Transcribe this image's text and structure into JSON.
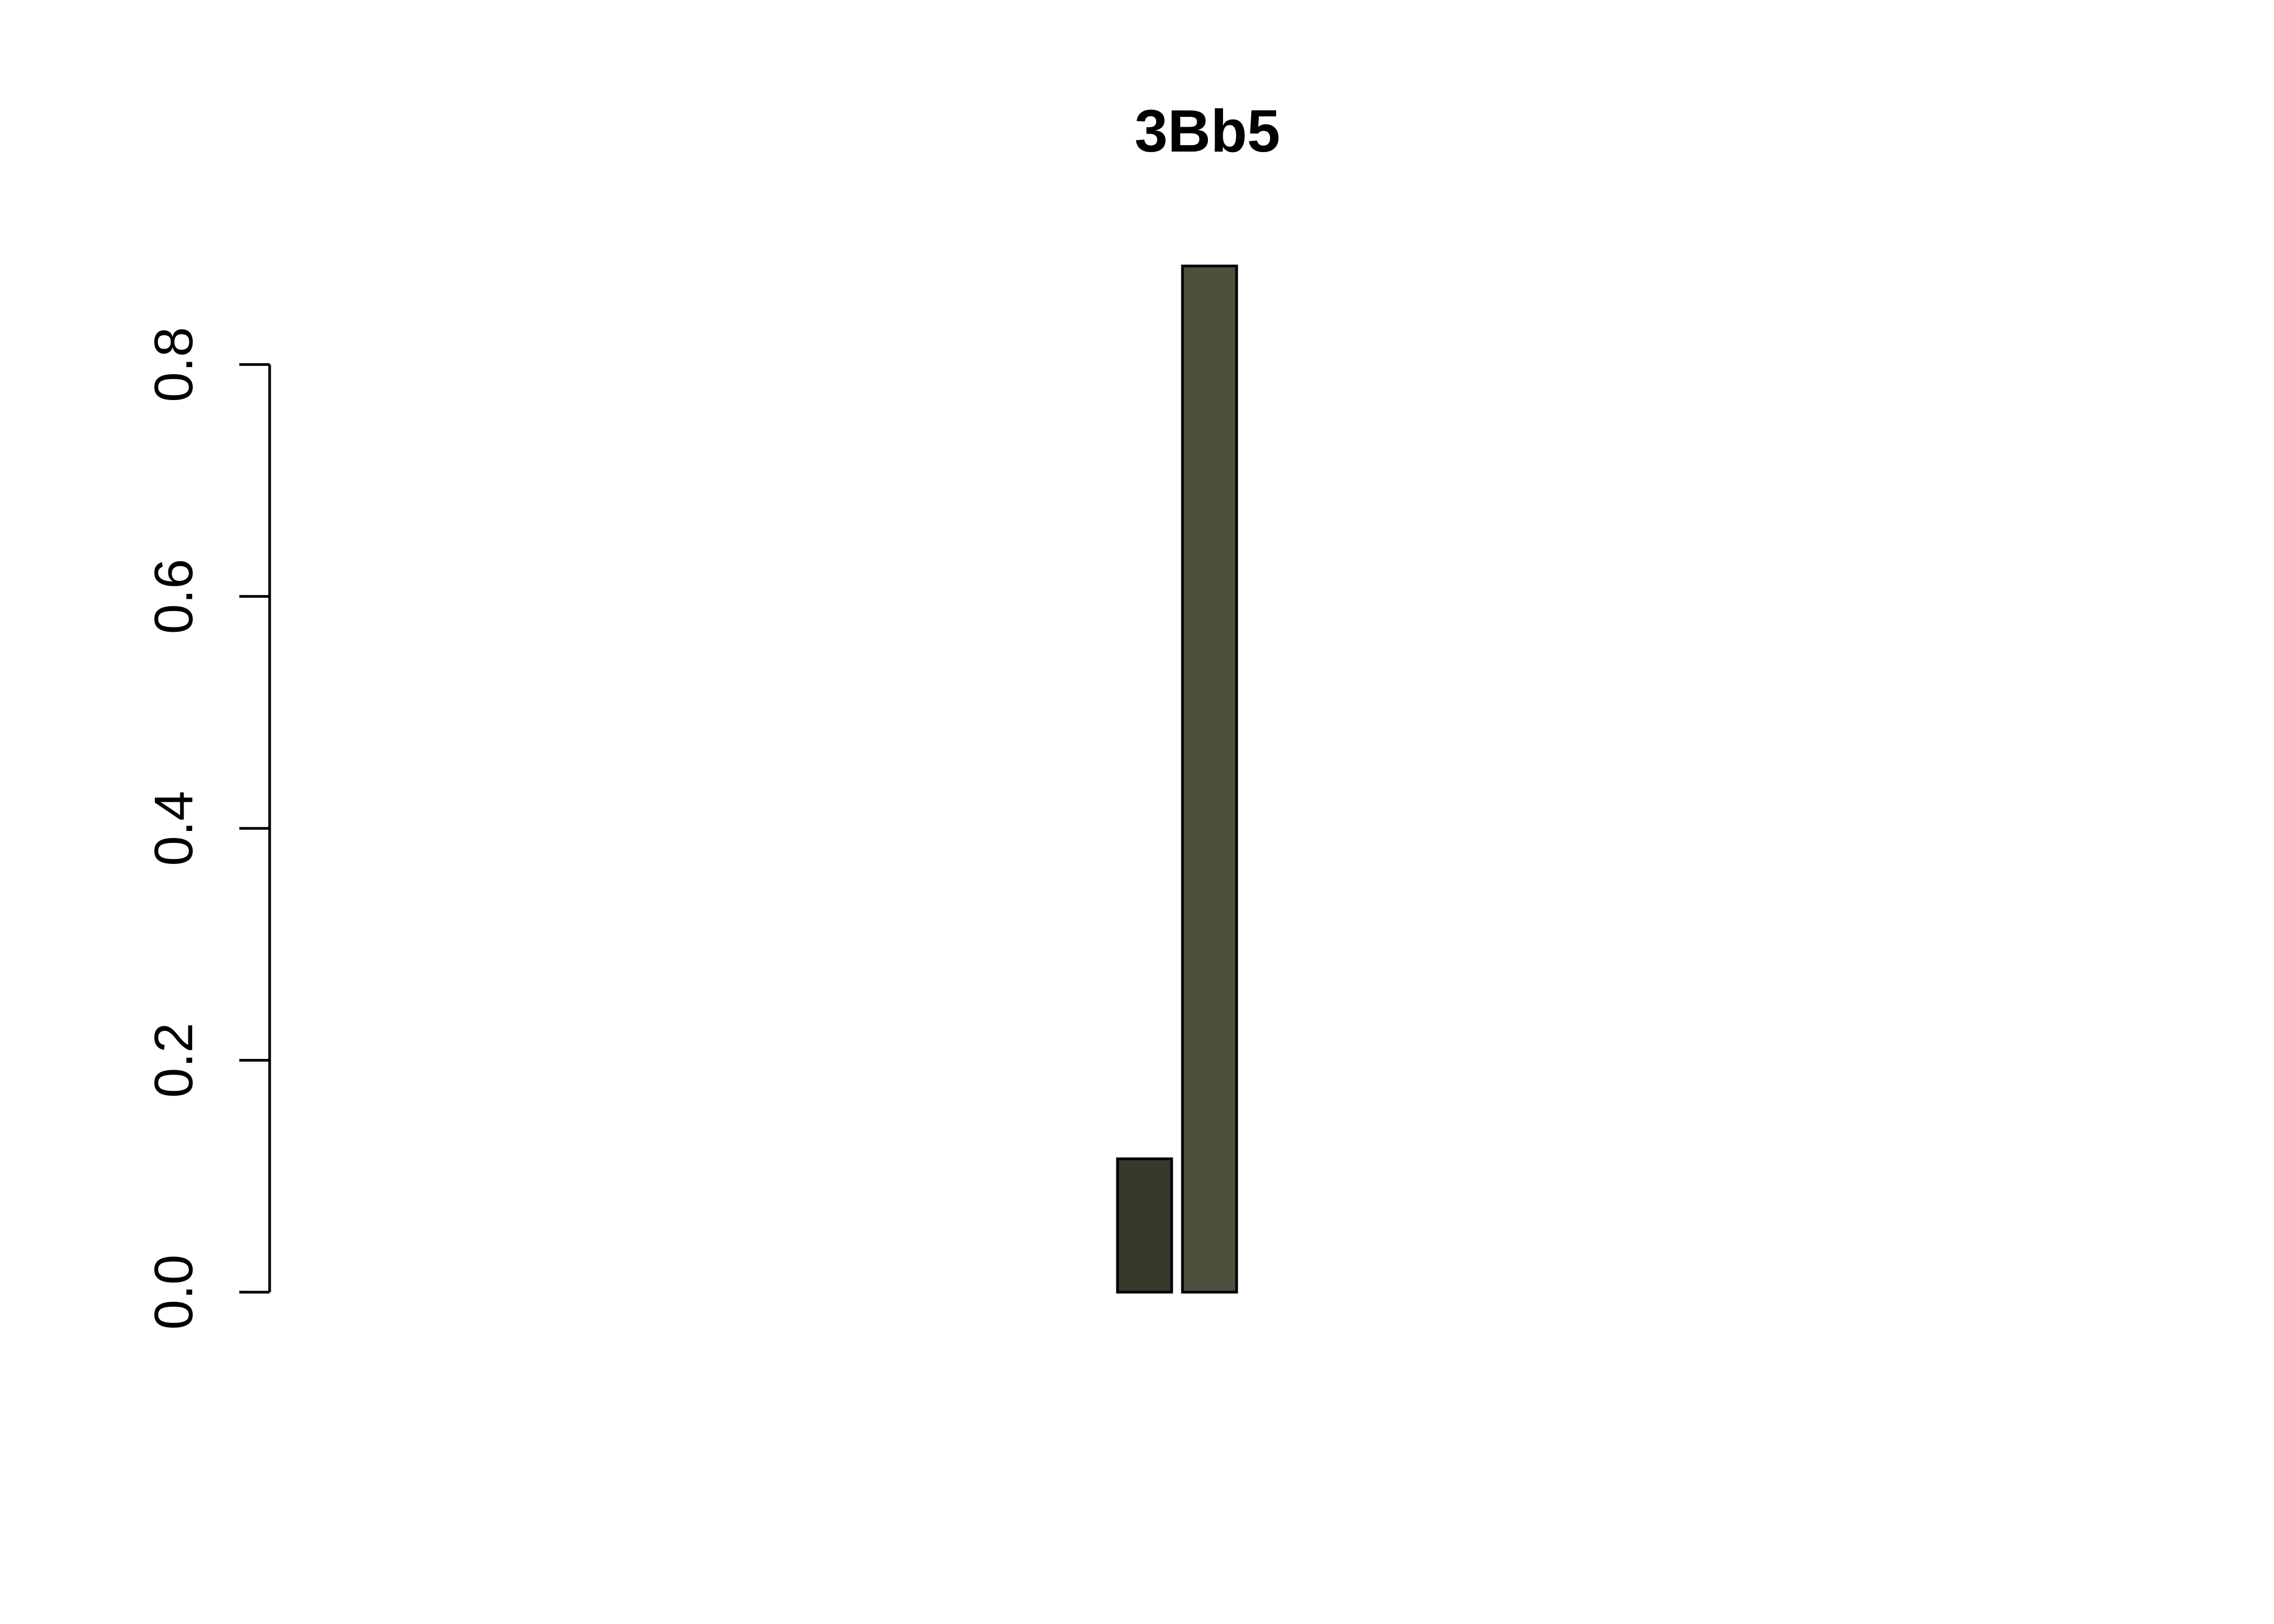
{
  "chart_data": {
    "type": "bar",
    "title": "3Bb5",
    "xlabel": "",
    "ylabel": "",
    "ylim": [
      0,
      0.9
    ],
    "yticks": [
      0.0,
      0.2,
      0.4,
      0.6,
      0.8
    ],
    "ytick_labels": [
      "0.0",
      "0.2",
      "0.4",
      "0.6",
      "0.8"
    ],
    "grid": false,
    "legend": "none",
    "values": [
      0,
      0,
      0,
      0,
      0,
      0,
      0,
      0,
      0,
      0,
      0,
      0,
      0.115,
      0.885,
      0,
      0,
      0,
      0,
      0,
      0,
      0,
      0,
      0,
      0,
      0,
      0,
      0,
      0
    ],
    "colors": [
      "#ffffff",
      "#ffffff",
      "#ffffff",
      "#ffffff",
      "#ffffff",
      "#ffffff",
      "#ffffff",
      "#ffffff",
      "#ffffff",
      "#ffffff",
      "#ffffff",
      "#ffffff",
      "#373a2a",
      "#4c513e",
      "#ffffff",
      "#ffffff",
      "#ffffff",
      "#ffffff",
      "#ffffff",
      "#ffffff",
      "#ffffff",
      "#ffffff",
      "#ffffff",
      "#ffffff",
      "#ffffff",
      "#ffffff",
      "#ffffff",
      "#ffffff"
    ]
  }
}
